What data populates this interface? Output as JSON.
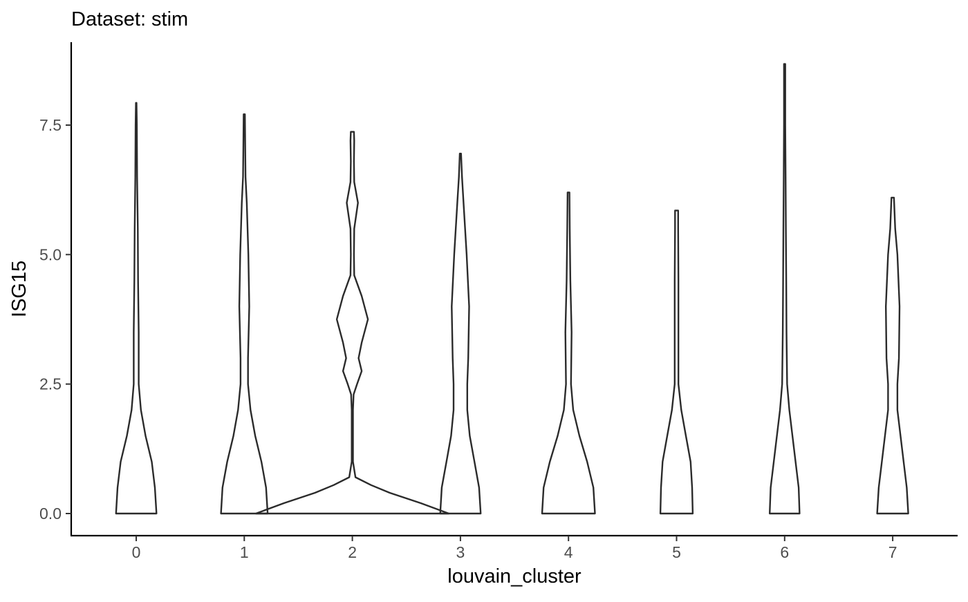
{
  "chart_data": {
    "type": "violin",
    "title": "Dataset: stim",
    "xlabel": "louvain_cluster",
    "ylabel": "ISG15",
    "categories": [
      "0",
      "1",
      "2",
      "3",
      "4",
      "5",
      "6",
      "7"
    ],
    "y_ticks": [
      0.0,
      2.5,
      5.0,
      7.5
    ],
    "y_tick_labels": [
      "0.0",
      "2.5",
      "5.0",
      "7.5"
    ],
    "ylim": [
      -0.42,
      9.08
    ],
    "grid": false,
    "legend": "none",
    "line_color": "#2b2b2b",
    "violins": [
      {
        "category": "0",
        "max": 7.93,
        "density": [
          [
            0,
            0.65
          ],
          [
            0.5,
            0.6
          ],
          [
            1.0,
            0.5
          ],
          [
            1.5,
            0.3
          ],
          [
            2.0,
            0.15
          ],
          [
            2.5,
            0.08
          ],
          [
            3.5,
            0.08
          ],
          [
            4.5,
            0.06
          ],
          [
            5.5,
            0.05
          ],
          [
            6.5,
            0.03
          ],
          [
            7.5,
            0.02
          ],
          [
            7.93,
            0.01
          ]
        ]
      },
      {
        "category": "1",
        "max": 7.71,
        "density": [
          [
            0,
            0.75
          ],
          [
            0.5,
            0.7
          ],
          [
            1.0,
            0.55
          ],
          [
            1.5,
            0.35
          ],
          [
            2.0,
            0.2
          ],
          [
            2.5,
            0.12
          ],
          [
            3.0,
            0.12
          ],
          [
            4.0,
            0.16
          ],
          [
            5.0,
            0.13
          ],
          [
            6.0,
            0.08
          ],
          [
            6.5,
            0.04
          ],
          [
            7.0,
            0.03
          ],
          [
            7.71,
            0.02
          ]
        ]
      },
      {
        "category": "2",
        "max": 7.37,
        "density": [
          [
            0,
            3.1
          ],
          [
            0.2,
            2.2
          ],
          [
            0.4,
            1.2
          ],
          [
            0.55,
            0.6
          ],
          [
            0.7,
            0.1
          ],
          [
            1.0,
            0.02
          ],
          [
            2.0,
            0.02
          ],
          [
            2.3,
            0.04
          ],
          [
            2.5,
            0.15
          ],
          [
            2.75,
            0.3
          ],
          [
            3.0,
            0.2
          ],
          [
            3.3,
            0.3
          ],
          [
            3.75,
            0.5
          ],
          [
            4.2,
            0.3
          ],
          [
            4.6,
            0.06
          ],
          [
            5.0,
            0.05
          ],
          [
            5.5,
            0.06
          ],
          [
            6.0,
            0.18
          ],
          [
            6.4,
            0.06
          ],
          [
            6.8,
            0.05
          ],
          [
            7.2,
            0.06
          ],
          [
            7.37,
            0.05
          ]
        ]
      },
      {
        "category": "3",
        "max": 6.95,
        "density": [
          [
            0,
            0.65
          ],
          [
            0.5,
            0.6
          ],
          [
            1.0,
            0.45
          ],
          [
            1.5,
            0.3
          ],
          [
            2.0,
            0.22
          ],
          [
            2.5,
            0.22
          ],
          [
            3.0,
            0.25
          ],
          [
            4.0,
            0.28
          ],
          [
            5.0,
            0.2
          ],
          [
            6.0,
            0.1
          ],
          [
            6.5,
            0.05
          ],
          [
            6.95,
            0.02
          ]
        ]
      },
      {
        "category": "4",
        "max": 6.2,
        "density": [
          [
            0,
            0.85
          ],
          [
            0.5,
            0.8
          ],
          [
            1.0,
            0.6
          ],
          [
            1.5,
            0.35
          ],
          [
            2.0,
            0.15
          ],
          [
            2.5,
            0.08
          ],
          [
            3.5,
            0.1
          ],
          [
            4.5,
            0.06
          ],
          [
            5.5,
            0.04
          ],
          [
            6.2,
            0.03
          ]
        ]
      },
      {
        "category": "5",
        "max": 5.85,
        "density": [
          [
            0,
            0.52
          ],
          [
            0.5,
            0.5
          ],
          [
            1.0,
            0.45
          ],
          [
            1.5,
            0.3
          ],
          [
            2.0,
            0.15
          ],
          [
            2.5,
            0.06
          ],
          [
            3.5,
            0.06
          ],
          [
            4.5,
            0.06
          ],
          [
            5.5,
            0.05
          ],
          [
            5.85,
            0.05
          ]
        ]
      },
      {
        "category": "6",
        "max": 8.68,
        "density": [
          [
            0,
            0.48
          ],
          [
            0.5,
            0.45
          ],
          [
            1.0,
            0.35
          ],
          [
            1.5,
            0.25
          ],
          [
            2.0,
            0.15
          ],
          [
            2.5,
            0.08
          ],
          [
            3.5,
            0.06
          ],
          [
            4.5,
            0.05
          ],
          [
            5.5,
            0.04
          ],
          [
            6.5,
            0.03
          ],
          [
            7.5,
            0.02
          ],
          [
            8.68,
            0.02
          ]
        ]
      },
      {
        "category": "7",
        "max": 6.1,
        "density": [
          [
            0,
            0.5
          ],
          [
            0.5,
            0.45
          ],
          [
            1.0,
            0.35
          ],
          [
            1.5,
            0.25
          ],
          [
            2.0,
            0.15
          ],
          [
            2.5,
            0.15
          ],
          [
            3.0,
            0.2
          ],
          [
            4.0,
            0.22
          ],
          [
            5.0,
            0.15
          ],
          [
            5.5,
            0.08
          ],
          [
            6.1,
            0.04
          ]
        ]
      }
    ]
  }
}
